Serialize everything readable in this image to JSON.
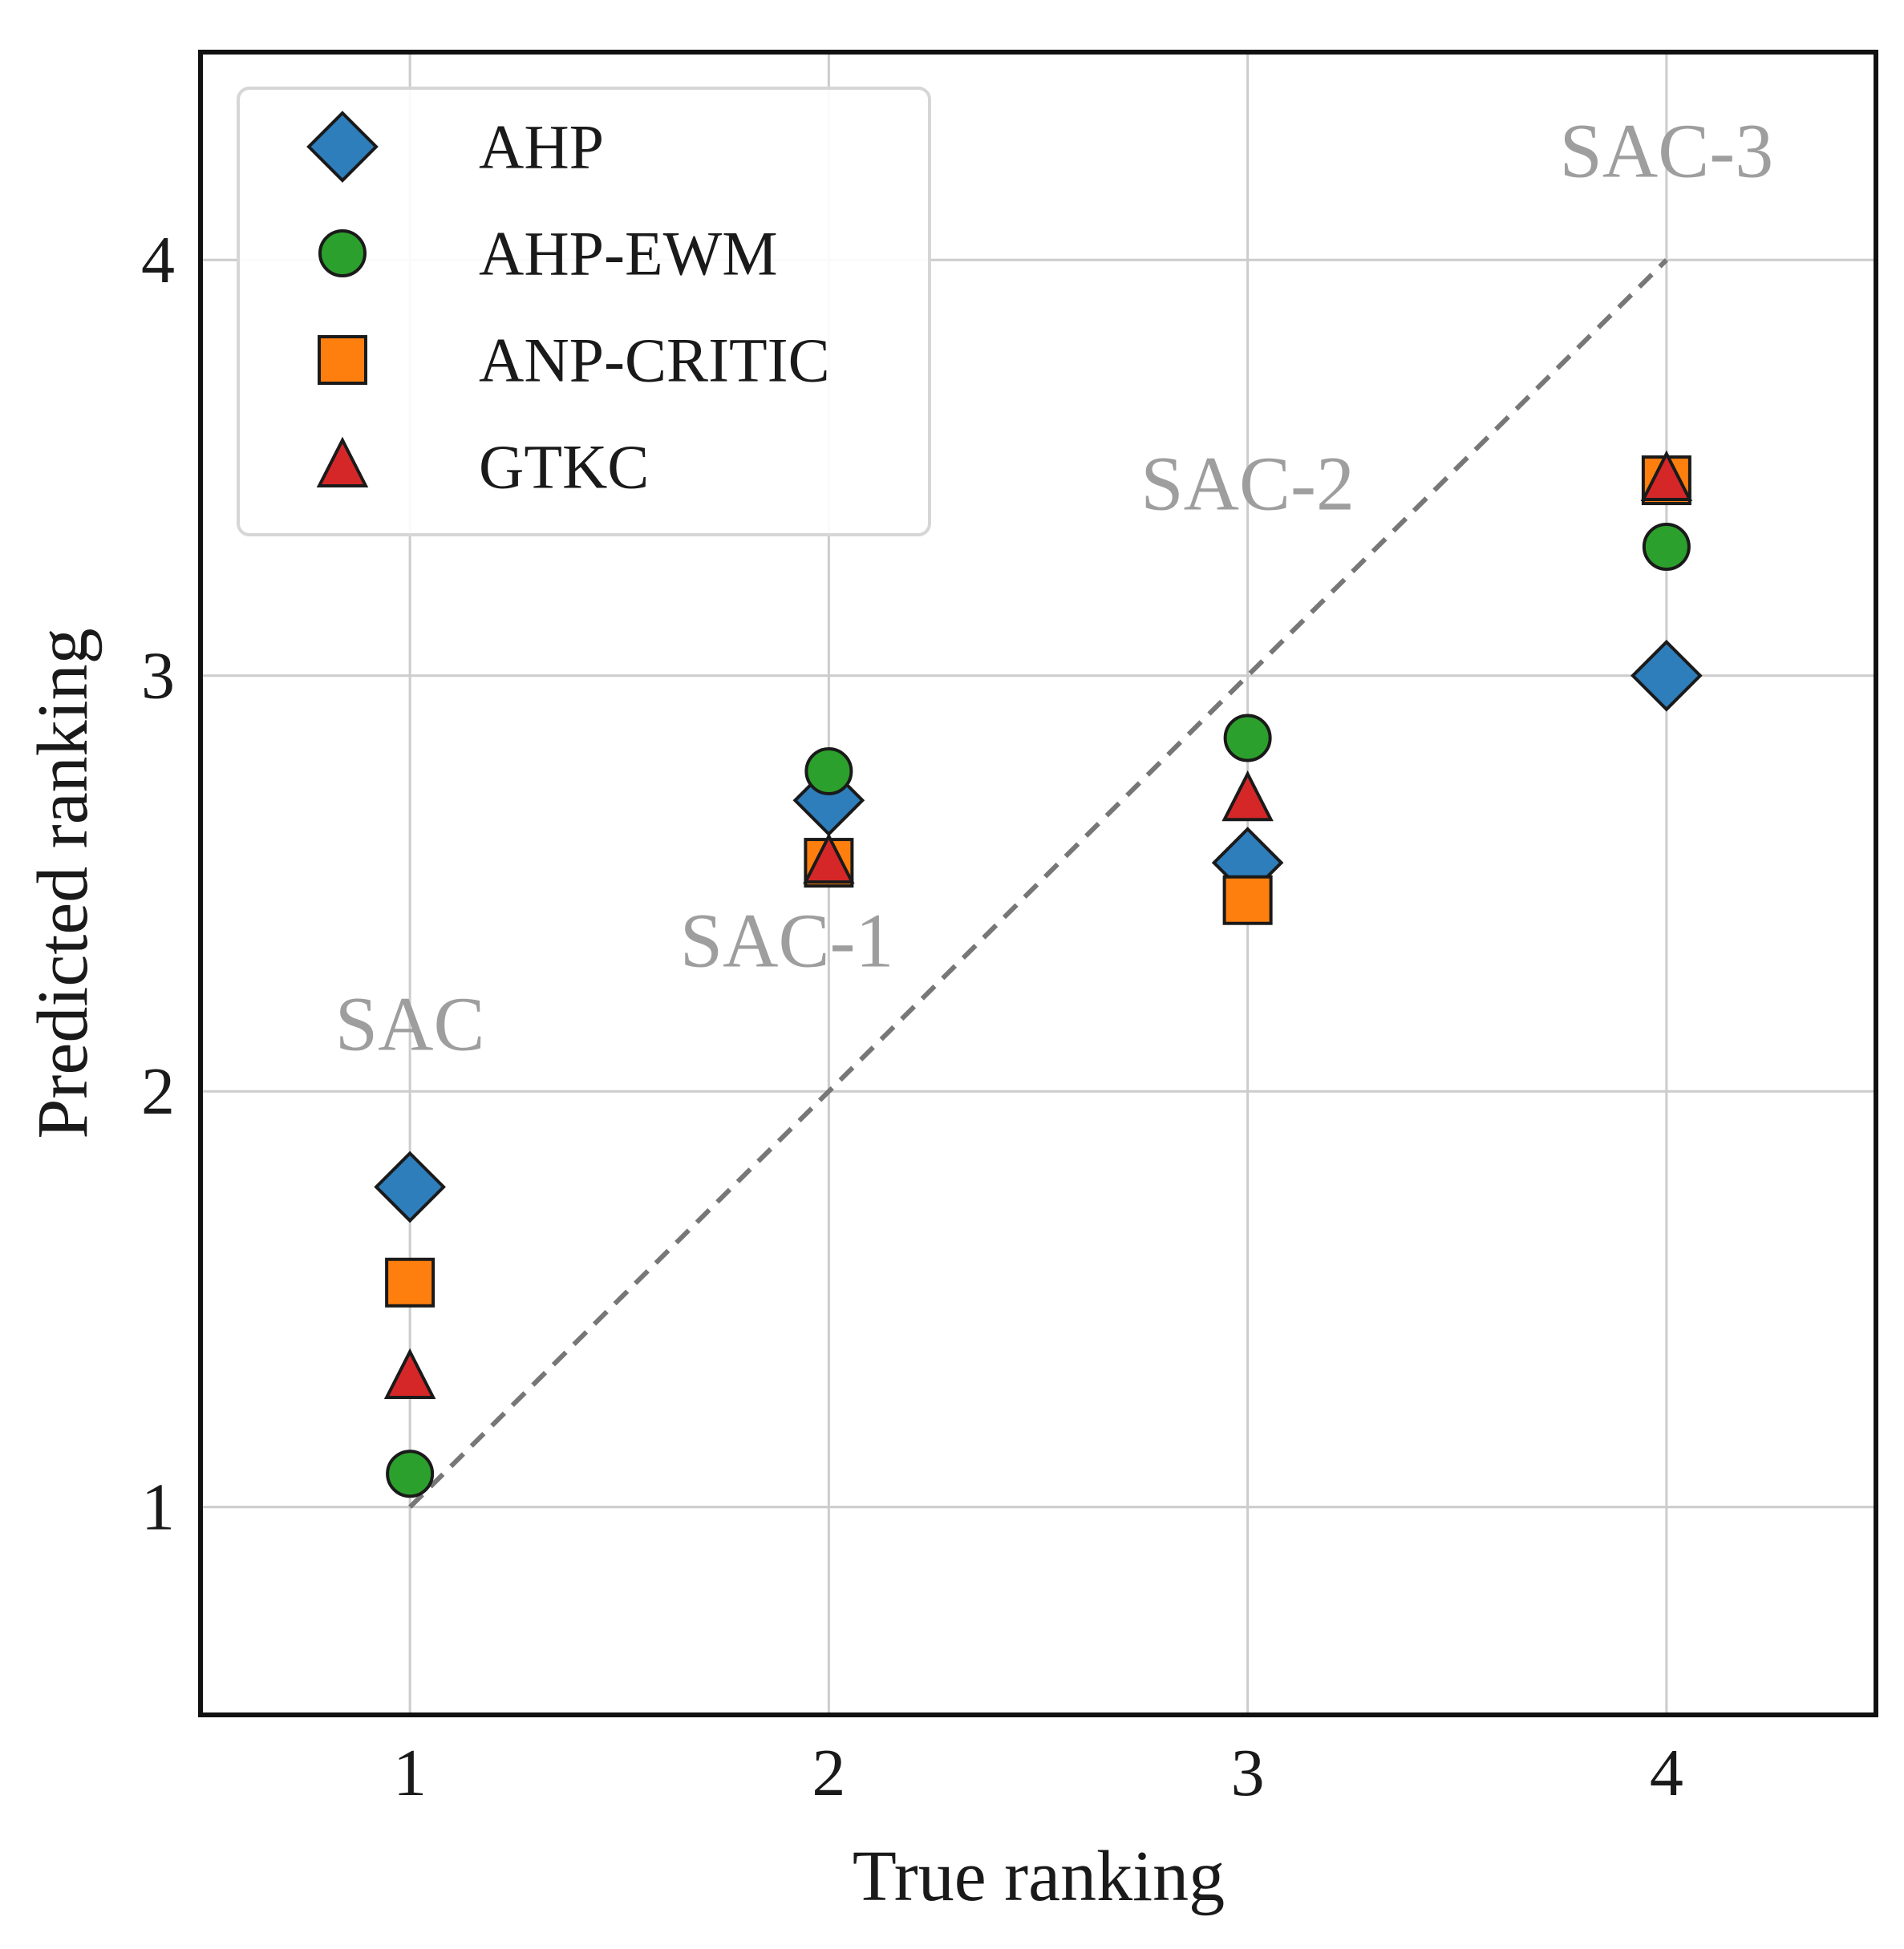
{
  "chart_data": {
    "type": "scatter",
    "title": "",
    "xlabel": "True ranking",
    "ylabel": "Predicted ranking",
    "xlim": [
      0.5,
      4.5
    ],
    "ylim": [
      0.5,
      4.5
    ],
    "xticks": [
      1,
      2,
      3,
      4
    ],
    "yticks": [
      1,
      2,
      3,
      4
    ],
    "grid": true,
    "legend_position": "top-left",
    "reference_line": {
      "style": "dashed",
      "x": [
        1,
        4
      ],
      "y": [
        1,
        4
      ],
      "color": "#777777"
    },
    "series": [
      {
        "name": "AHP",
        "marker": "diamond",
        "color": "#2e7ebc",
        "x": [
          1,
          2,
          3,
          4
        ],
        "y": [
          1.77,
          2.7,
          2.55,
          3.0
        ]
      },
      {
        "name": "AHP-EWM",
        "marker": "circle",
        "color": "#2ca02c",
        "x": [
          1,
          2,
          3,
          4
        ],
        "y": [
          1.08,
          2.77,
          2.85,
          3.31
        ]
      },
      {
        "name": "ANP-CRITIC",
        "marker": "square",
        "color": "#ff7f0e",
        "x": [
          1,
          2,
          3,
          4
        ],
        "y": [
          1.54,
          2.55,
          2.46,
          3.47
        ]
      },
      {
        "name": "GTKC",
        "marker": "triangle",
        "color": "#d62728",
        "x": [
          1,
          2,
          3,
          4
        ],
        "y": [
          1.31,
          2.55,
          2.7,
          3.47
        ]
      }
    ],
    "annotations": [
      {
        "text": "SAC",
        "x": 1,
        "y": 2.1
      },
      {
        "text": "SAC-1",
        "x": 1.9,
        "y": 2.3
      },
      {
        "text": "SAC-2",
        "x": 3.0,
        "y": 3.4
      },
      {
        "text": "SAC-3",
        "x": 4.0,
        "y": 4.2
      }
    ]
  }
}
